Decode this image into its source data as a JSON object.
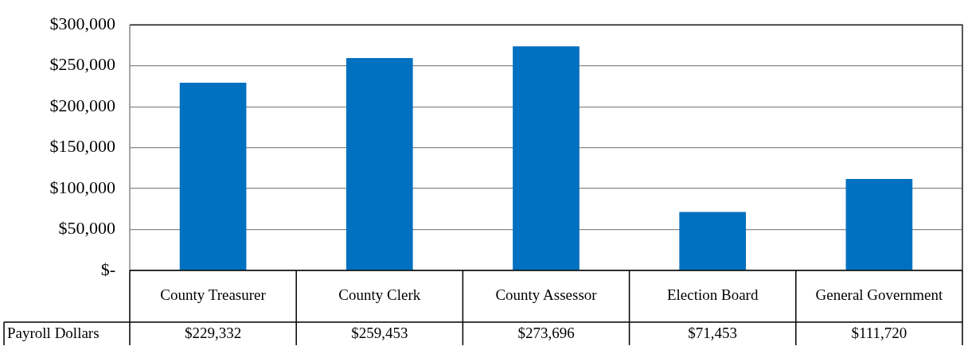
{
  "chart_data": {
    "type": "bar",
    "categories": [
      "County Treasurer",
      "County Clerk",
      "County Assessor",
      "Election Board",
      "General Government"
    ],
    "series": [
      {
        "name": "Payroll Dollars",
        "color": "#0070c0",
        "values": [
          229332,
          259453,
          273696,
          71453,
          111720
        ],
        "value_labels": [
          "$229,332",
          "$259,453",
          "$273,696",
          "$71,453",
          "$111,720"
        ]
      }
    ],
    "ylim": [
      0,
      300000
    ],
    "yticks": [
      {
        "value": 0,
        "label": "$-"
      },
      {
        "value": 50000,
        "label": "$50,000"
      },
      {
        "value": 100000,
        "label": "$100,000"
      },
      {
        "value": 150000,
        "label": "$150,000"
      },
      {
        "value": 200000,
        "label": "$200,000"
      },
      {
        "value": 250000,
        "label": "$250,000"
      },
      {
        "value": 300000,
        "label": "$300,000"
      }
    ],
    "grid": "y",
    "legend": "bottom"
  }
}
